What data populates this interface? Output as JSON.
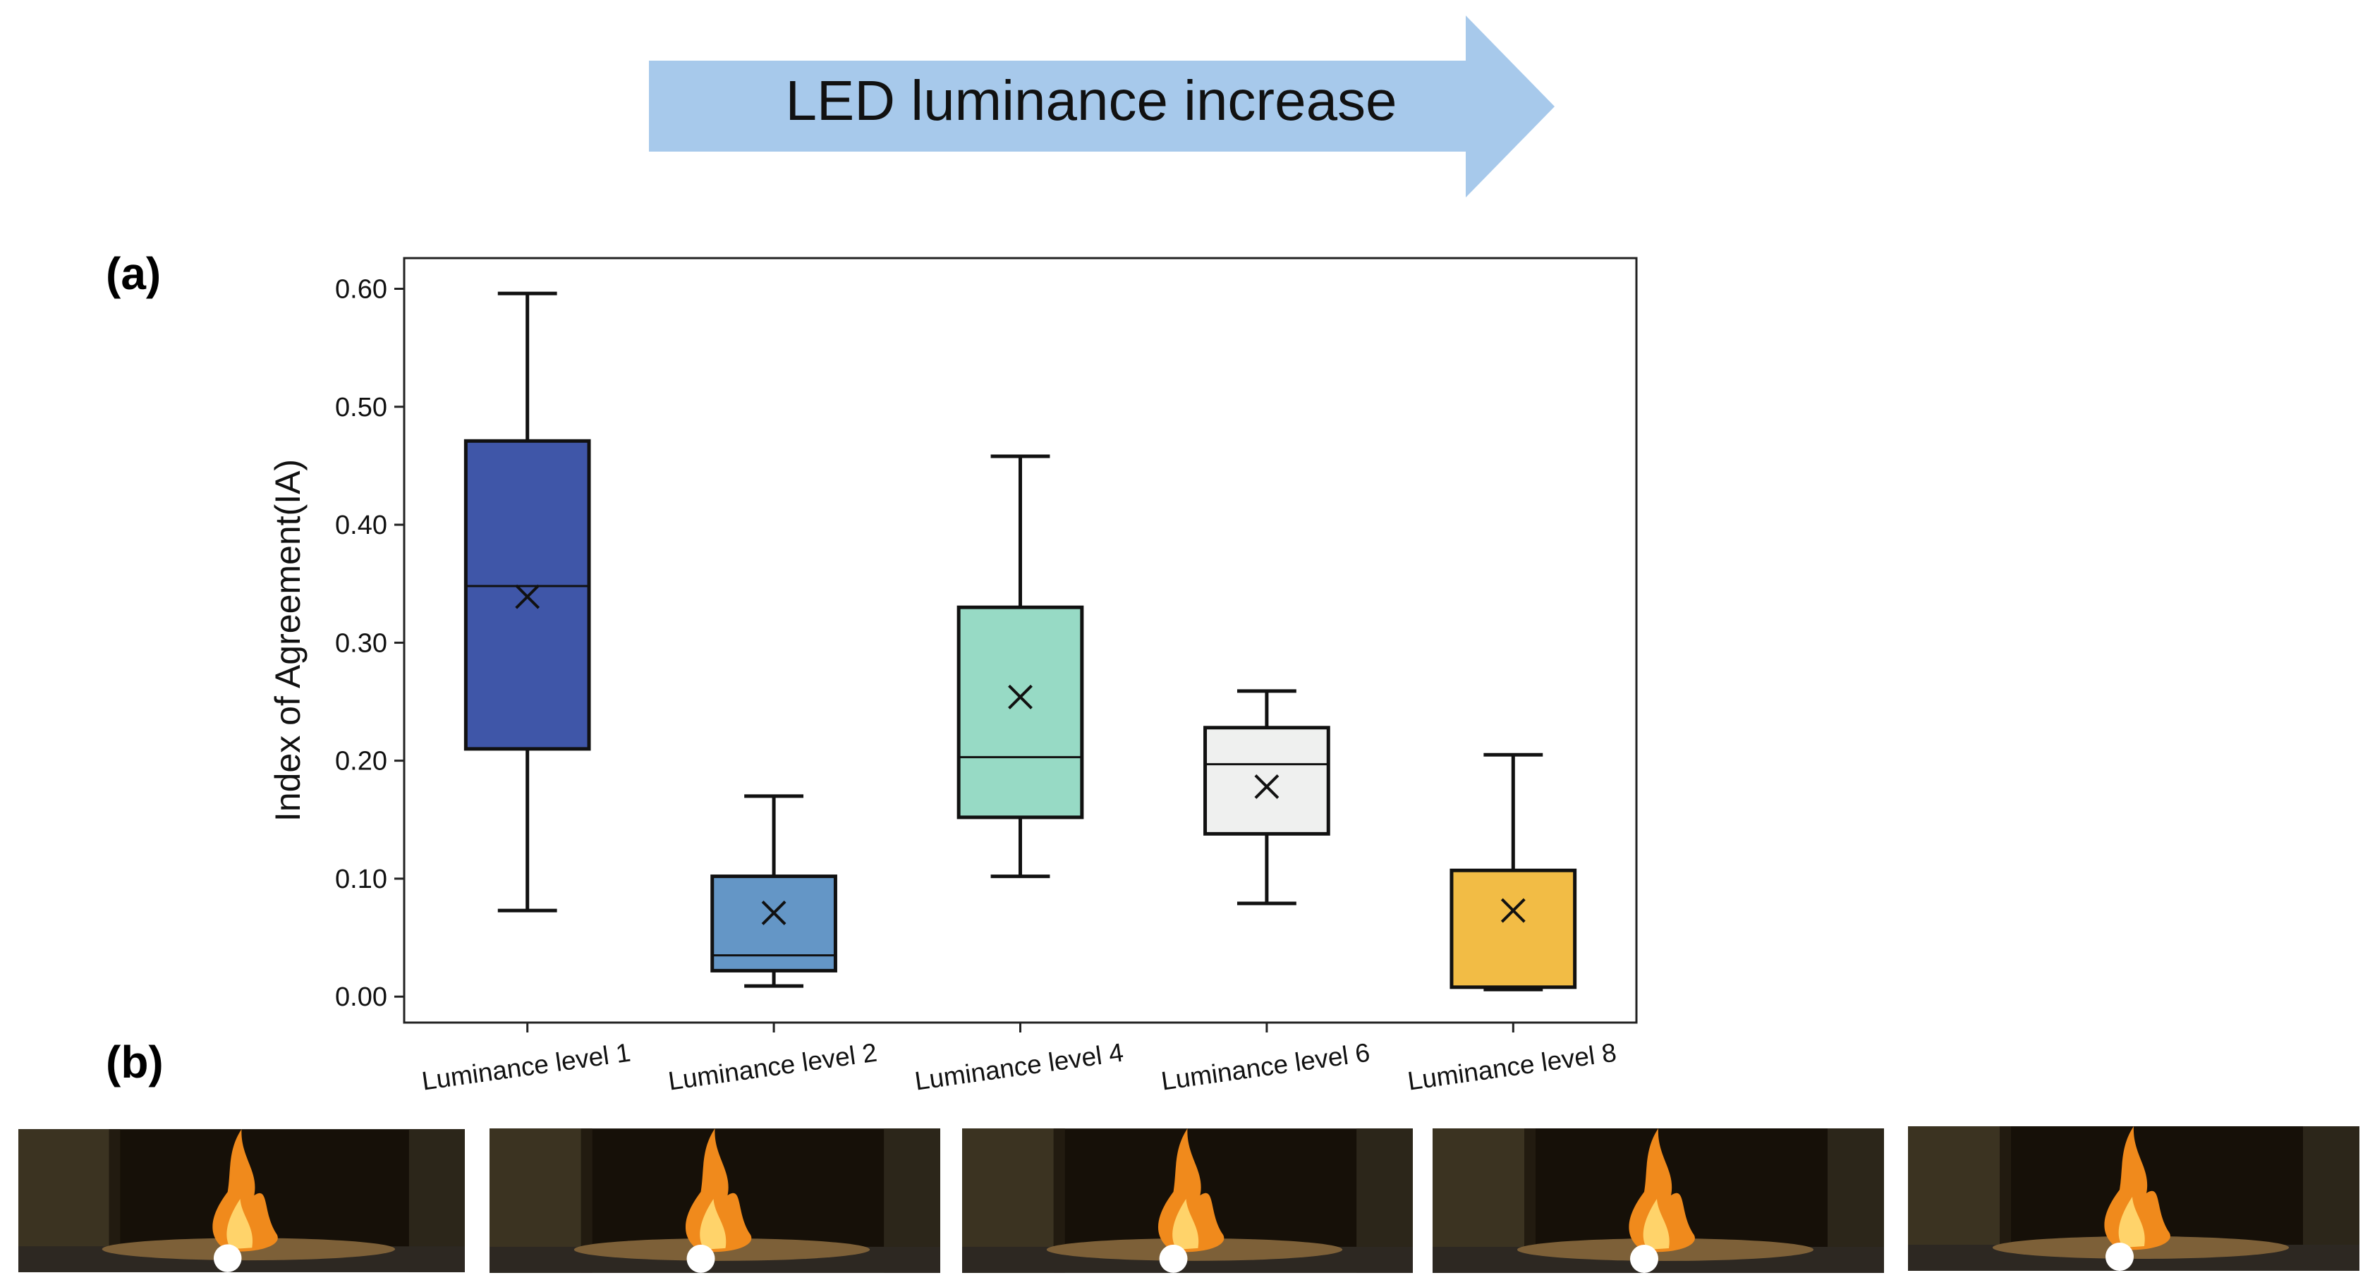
{
  "header": {
    "arrow_label": "LED luminance increase"
  },
  "panel_labels": [
    "(a)",
    "(b)"
  ],
  "chart_data": {
    "type": "box",
    "ylabel": "Index of Agreement(IA)",
    "categories": [
      "Luminance level 1",
      "Luminance level 2",
      "Luminance level 4",
      "Luminance level 6",
      "Luminance level 8"
    ],
    "whisker_low": [
      0.073,
      0.009,
      0.102,
      0.079,
      0.006
    ],
    "q1": [
      0.21,
      0.022,
      0.152,
      0.138,
      0.008
    ],
    "median": [
      0.348,
      0.035,
      0.203,
      0.197,
      0.008
    ],
    "q3": [
      0.471,
      0.102,
      0.33,
      0.228,
      0.107
    ],
    "whisker_high": [
      0.596,
      0.17,
      0.458,
      0.259,
      0.205
    ],
    "mean": [
      0.339,
      0.071,
      0.254,
      0.178,
      0.073
    ],
    "colors": [
      "#3f56a8",
      "#6496c6",
      "#97dac5",
      "#eff0ef",
      "#f2bc45"
    ],
    "ylim": [
      -0.022,
      0.626
    ],
    "yticks": [
      {
        "value": 0,
        "label": "0.00"
      },
      {
        "value": 0.1,
        "label": "0.10"
      },
      {
        "value": 0.2,
        "label": "0.20"
      },
      {
        "value": 0.3,
        "label": "0.30"
      },
      {
        "value": 0.4,
        "label": "0.40"
      },
      {
        "value": 0.5,
        "label": "0.50"
      },
      {
        "value": 0.6,
        "label": "0.60"
      }
    ]
  }
}
